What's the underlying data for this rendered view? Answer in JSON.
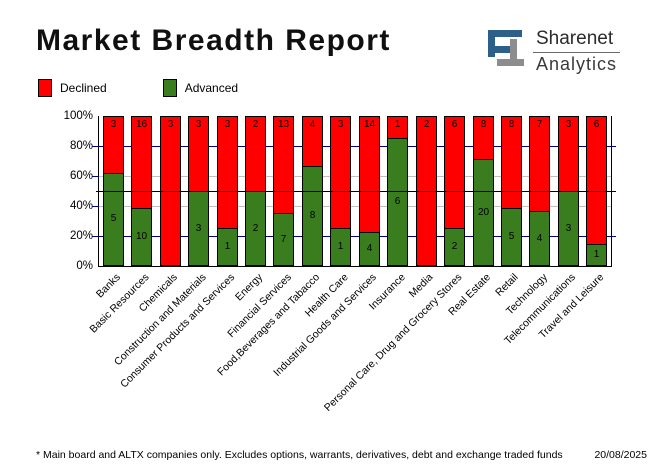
{
  "header": {
    "title": "Market Breadth Report",
    "logo": {
      "brand": "Sharenet",
      "sub": "Analytics"
    }
  },
  "legend": {
    "declined": "Declined",
    "advanced": "Advanced"
  },
  "chart_data": {
    "type": "bar",
    "stacked": "percent",
    "title": "Market Breadth Report",
    "categories": [
      "Banks",
      "Basic Resources",
      "Chemicals",
      "Construction and Materials",
      "Consumer Products and Services",
      "Energy",
      "Financial Services",
      "Food,Beverages and Tabacco",
      "Health Care",
      "Industrial Goods and Services",
      "Insurance",
      "Media",
      "Personal Care, Drug and Grocery Stores",
      "Real Estate",
      "Retail",
      "Technology",
      "Telecommunications",
      "Travel and Leisure"
    ],
    "series": [
      {
        "name": "Declined",
        "color": "#ff0000",
        "values": [
          3,
          16,
          3,
          3,
          3,
          2,
          13,
          4,
          3,
          14,
          1,
          2,
          6,
          8,
          8,
          7,
          3,
          6
        ]
      },
      {
        "name": "Advanced",
        "color": "#3a7d1e",
        "values": [
          5,
          10,
          0,
          3,
          1,
          2,
          7,
          8,
          1,
          4,
          6,
          0,
          2,
          20,
          5,
          4,
          3,
          1
        ]
      }
    ],
    "y_ticks": [
      "100%",
      "80%",
      "60%",
      "40%",
      "20%",
      "0%"
    ],
    "ylim": [
      0,
      100
    ],
    "gridlines": [
      {
        "pct": 80,
        "color": "#000080"
      },
      {
        "pct": 60,
        "color": "#c0c0c0"
      },
      {
        "pct": 40,
        "color": "#c0c0c0"
      },
      {
        "pct": 20,
        "color": "#000080"
      }
    ],
    "reference_line": {
      "pct": 50,
      "color": "#000000"
    },
    "legend_position": "top-left",
    "grid": true
  },
  "footnote": {
    "text": "* Main board and ALTX companies only. Excludes options, warrants, derivatives, debt and exchange traded funds",
    "date": "20/08/2025"
  },
  "colors": {
    "declined": "#ff0000",
    "advanced": "#3a7d1e",
    "grid_navy": "#000080",
    "grid_gray": "#c0c0c0",
    "logo_blue": "#2e5f88",
    "logo_gray": "#8d8d8d"
  }
}
